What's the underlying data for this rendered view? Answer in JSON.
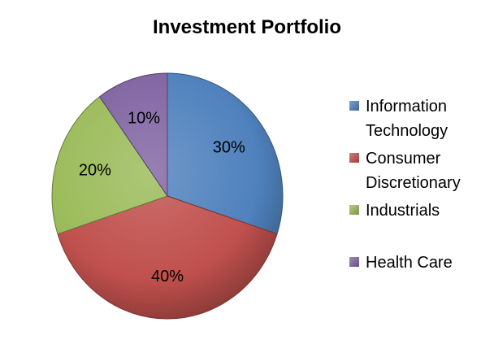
{
  "chart_data": {
    "type": "pie",
    "title": "Investment Portfolio",
    "slices": [
      {
        "name": "Information Technology",
        "legend_lines": [
          "Information",
          "Technology"
        ],
        "value": 30,
        "label": "30%",
        "color": "#4F81BD"
      },
      {
        "name": "Consumer Discretionary",
        "legend_lines": [
          "Consumer",
          "Discretionary"
        ],
        "value": 40,
        "label": "40%",
        "color": "#C0504D"
      },
      {
        "name": "Industrials",
        "legend_lines": [
          "Industrials"
        ],
        "value": 20,
        "label": "20%",
        "color": "#9BBB59"
      },
      {
        "name": "Health Care",
        "legend_lines": [
          "Health Care"
        ],
        "value": 10,
        "label": "10%",
        "color": "#8064A2"
      }
    ],
    "start_angle": "12 o'clock",
    "direction": "clockwise",
    "legend_position": "right",
    "style": "3d-shaded"
  }
}
